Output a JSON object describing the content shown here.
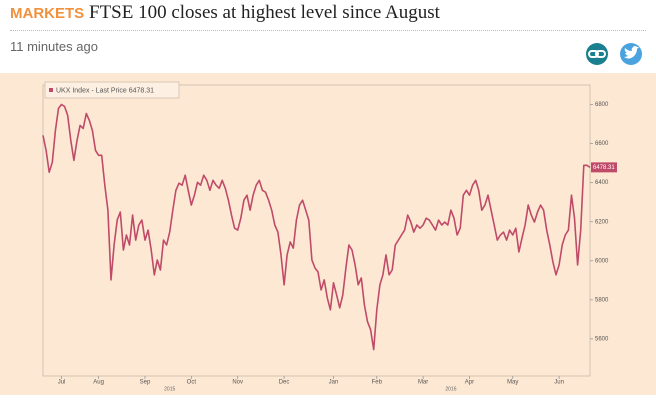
{
  "header": {
    "section": "MARKETS",
    "title": "FTSE 100 closes at highest level since August",
    "time": "11 minutes ago"
  },
  "chart_data": {
    "type": "line",
    "series": [
      {
        "name": "UKX Index - Last Price 6478.31",
        "color": "#bf4b69",
        "values": [
          6642,
          6565,
          6453,
          6504,
          6667,
          6780,
          6800,
          6790,
          6744,
          6616,
          6514,
          6616,
          6693,
          6678,
          6754,
          6718,
          6667,
          6565,
          6540,
          6540,
          6387,
          6259,
          5902,
          6081,
          6208,
          6249,
          6055,
          6132,
          6081,
          6234,
          6106,
          6183,
          6208,
          6106,
          6157,
          6055,
          5928,
          6004,
          5953,
          6106,
          6081,
          6147,
          6259,
          6361,
          6397,
          6387,
          6438,
          6361,
          6285,
          6336,
          6402,
          6387,
          6438,
          6412,
          6361,
          6412,
          6387,
          6371,
          6412,
          6371,
          6310,
          6234,
          6167,
          6157,
          6218,
          6310,
          6336,
          6259,
          6336,
          6387,
          6412,
          6361,
          6351,
          6310,
          6259,
          6183,
          6147,
          6030,
          5877,
          6030,
          6096,
          6065,
          6208,
          6285,
          6310,
          6259,
          6208,
          6004,
          5963,
          5943,
          5851,
          5902,
          5810,
          5749,
          5887,
          5826,
          5759,
          5826,
          5963,
          6081,
          6055,
          5979,
          5877,
          5912,
          5774,
          5688,
          5647,
          5545,
          5749,
          5877,
          5928,
          6030,
          5928,
          5953,
          6081,
          6106,
          6132,
          6157,
          6234,
          6198,
          6147,
          6183,
          6167,
          6183,
          6218,
          6208,
          6183,
          6157,
          6208,
          6183,
          6198,
          6183,
          6259,
          6218,
          6132,
          6167,
          6336,
          6361,
          6336,
          6387,
          6412,
          6361,
          6259,
          6285,
          6336,
          6259,
          6183,
          6106,
          6132,
          6147,
          6106,
          6157,
          6132,
          6167,
          6045,
          6116,
          6183,
          6285,
          6234,
          6198,
          6249,
          6285,
          6259,
          6157,
          6081,
          5994,
          5928,
          5979,
          6081,
          6132,
          6157,
          6336,
          6218,
          5979,
          6157,
          6489,
          6489,
          6478
        ]
      }
    ],
    "last_price": 6478.31,
    "xlim": [
      0,
      177
    ],
    "xticks": [
      {
        "value": 6,
        "label": "Jul"
      },
      {
        "value": 18,
        "label": "Aug"
      },
      {
        "value": 33,
        "label": "Sep"
      },
      {
        "value": 48,
        "label": "Oct"
      },
      {
        "value": 63,
        "label": "Nov"
      },
      {
        "value": 78,
        "label": "Dec"
      },
      {
        "value": 94,
        "label": "Jan"
      },
      {
        "value": 108,
        "label": "Feb"
      },
      {
        "value": 123,
        "label": "Mar"
      },
      {
        "value": 138,
        "label": "Apr"
      },
      {
        "value": 152,
        "label": "May"
      },
      {
        "value": 167,
        "label": "Jun"
      }
    ],
    "year_labels": [
      {
        "value": 41,
        "label": "2015"
      },
      {
        "value": 132,
        "label": "2016"
      }
    ],
    "ylim": [
      5410,
      6900
    ],
    "yticks": [
      5600,
      5800,
      6000,
      6200,
      6400,
      6600,
      6800
    ]
  }
}
